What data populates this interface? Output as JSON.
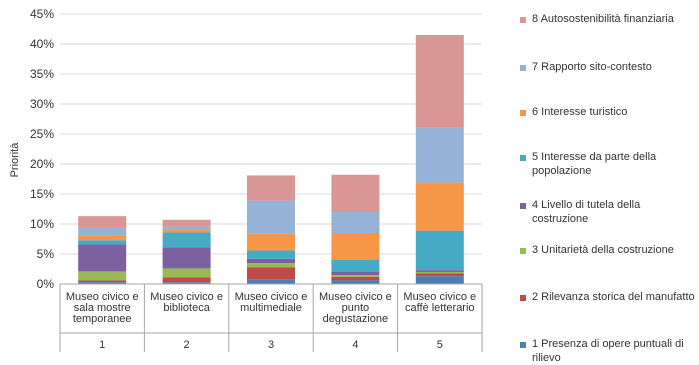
{
  "chart_data": {
    "type": "bar",
    "stacked": true,
    "ylabel": "Priorità",
    "ylim": [
      0,
      45
    ],
    "yticks": [
      "0%",
      "5%",
      "10%",
      "15%",
      "20%",
      "25%",
      "30%",
      "35%",
      "40%",
      "45%"
    ],
    "categories": [
      {
        "label_lines": [
          "Museo civico e",
          "sala mostre",
          "temporanee"
        ],
        "number": "1"
      },
      {
        "label_lines": [
          "Museo civico e",
          "biblioteca"
        ],
        "number": "2"
      },
      {
        "label_lines": [
          "Museo civico e",
          "multimediale"
        ],
        "number": "3"
      },
      {
        "label_lines": [
          "Museo civico e",
          "punto",
          "degustazione"
        ],
        "number": "4"
      },
      {
        "label_lines": [
          "Museo civico e",
          "caffè letterario"
        ],
        "number": "5"
      }
    ],
    "series": [
      {
        "name": "1 Presenza di opere puntuali di rilievo",
        "color": "#4a7ebb",
        "values": [
          0.3,
          0.3,
          0.8,
          0.6,
          1.3
        ]
      },
      {
        "name": "2 Rilevanza storica del manufatto",
        "color": "#be4b48",
        "values": [
          0.3,
          0.8,
          2.0,
          0.6,
          0.5
        ]
      },
      {
        "name": "3 Unitarietà della costruzione",
        "color": "#98b954",
        "values": [
          1.5,
          1.5,
          0.7,
          0.3,
          0.2
        ]
      },
      {
        "name": "4 Livello di tutela della costruzione",
        "color": "#7d60a0",
        "values": [
          4.5,
          3.5,
          0.7,
          0.5,
          0.3
        ]
      },
      {
        "name": "5 Interesse da parte della popolazione",
        "color": "#46aac5",
        "values": [
          0.7,
          2.5,
          1.4,
          2.0,
          6.6
        ]
      },
      {
        "name": "6 Interesse turistico",
        "color": "#f79646",
        "values": [
          0.8,
          0.5,
          2.8,
          4.5,
          8.0
        ]
      },
      {
        "name": "7 Rapporto sito-contesto",
        "color": "#95b3d7",
        "values": [
          1.4,
          0.5,
          5.5,
          3.5,
          9.2
        ]
      },
      {
        "name": "8 Autosostenibilità finanziaria",
        "color": "#d99694",
        "values": [
          1.8,
          1.1,
          4.2,
          6.2,
          15.4
        ]
      }
    ]
  }
}
